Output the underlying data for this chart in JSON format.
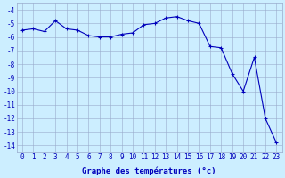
{
  "hours": [
    0,
    1,
    2,
    3,
    4,
    5,
    6,
    7,
    8,
    9,
    10,
    11,
    12,
    13,
    14,
    15,
    16,
    17,
    18,
    19,
    20,
    21,
    22,
    23
  ],
  "temperatures": [
    -5.5,
    -5.4,
    -5.6,
    -4.8,
    -5.4,
    -5.5,
    -5.9,
    -6.0,
    -6.0,
    -5.8,
    -5.7,
    -5.1,
    -5.0,
    -4.6,
    -4.5,
    -4.8,
    -5.0,
    -6.7,
    -6.8,
    -8.7,
    -10.0,
    -7.5,
    -12.0,
    -13.8
  ],
  "line_color": "#0000bb",
  "marker": "+",
  "marker_size": 3,
  "marker_linewidth": 0.8,
  "line_width": 0.8,
  "bg_color": "#cceeff",
  "grid_color": "#99aacc",
  "xlabel": "Graphe des températures (°c)",
  "ylim": [
    -14.5,
    -3.5
  ],
  "xlim": [
    -0.5,
    23.5
  ],
  "yticks": [
    -4,
    -5,
    -6,
    -7,
    -8,
    -9,
    -10,
    -11,
    -12,
    -13,
    -14
  ],
  "xlabel_fontsize": 6.5,
  "tick_fontsize": 5.5
}
